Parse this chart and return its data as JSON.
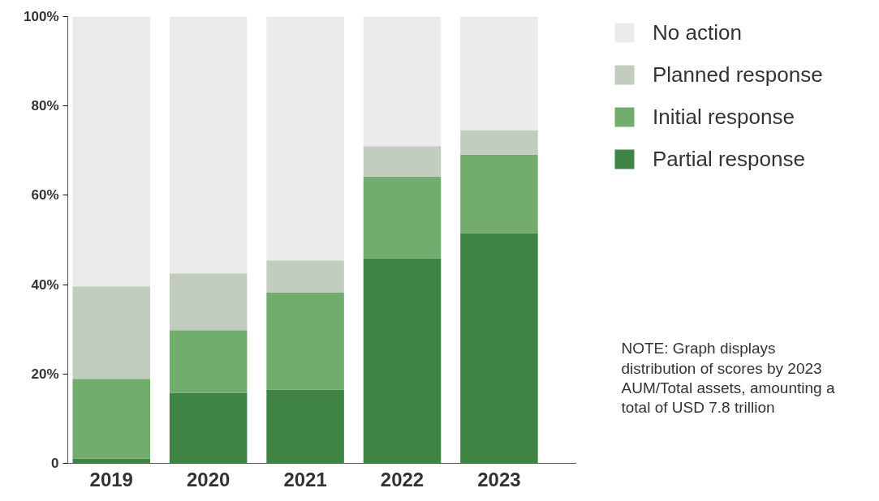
{
  "chart_data": {
    "type": "bar",
    "stacked": true,
    "categories": [
      "2019",
      "2020",
      "2021",
      "2022",
      "2023"
    ],
    "series": [
      {
        "name": "Partial response",
        "color": "#408444",
        "values": [
          1.1,
          15.8,
          16.5,
          45.9,
          51.5
        ]
      },
      {
        "name": "Initial response",
        "color": "#73ad6e",
        "values": [
          17.8,
          14.0,
          21.8,
          18.3,
          17.6
        ]
      },
      {
        "name": "Planned response",
        "color": "#c2cdc0",
        "values": [
          20.7,
          12.7,
          7.1,
          6.8,
          5.5
        ]
      },
      {
        "name": "No action",
        "color": "#ebebeb",
        "values": [
          60.4,
          57.5,
          54.6,
          29.0,
          25.4
        ]
      }
    ],
    "ylim": [
      0,
      100
    ],
    "yticks": [
      {
        "value": 0,
        "label": "0"
      },
      {
        "value": 20,
        "label": "20%"
      },
      {
        "value": 40,
        "label": "40%"
      },
      {
        "value": 60,
        "label": "60%"
      },
      {
        "value": 80,
        "label": "80%"
      },
      {
        "value": 100,
        "label": "100%"
      }
    ],
    "grid": false,
    "legend": "top right",
    "annotations": [
      "NOTE: Graph displays distribution of scores by 2023 AUM/Total assets, amounting a total of USD 7.8 trillion"
    ]
  }
}
